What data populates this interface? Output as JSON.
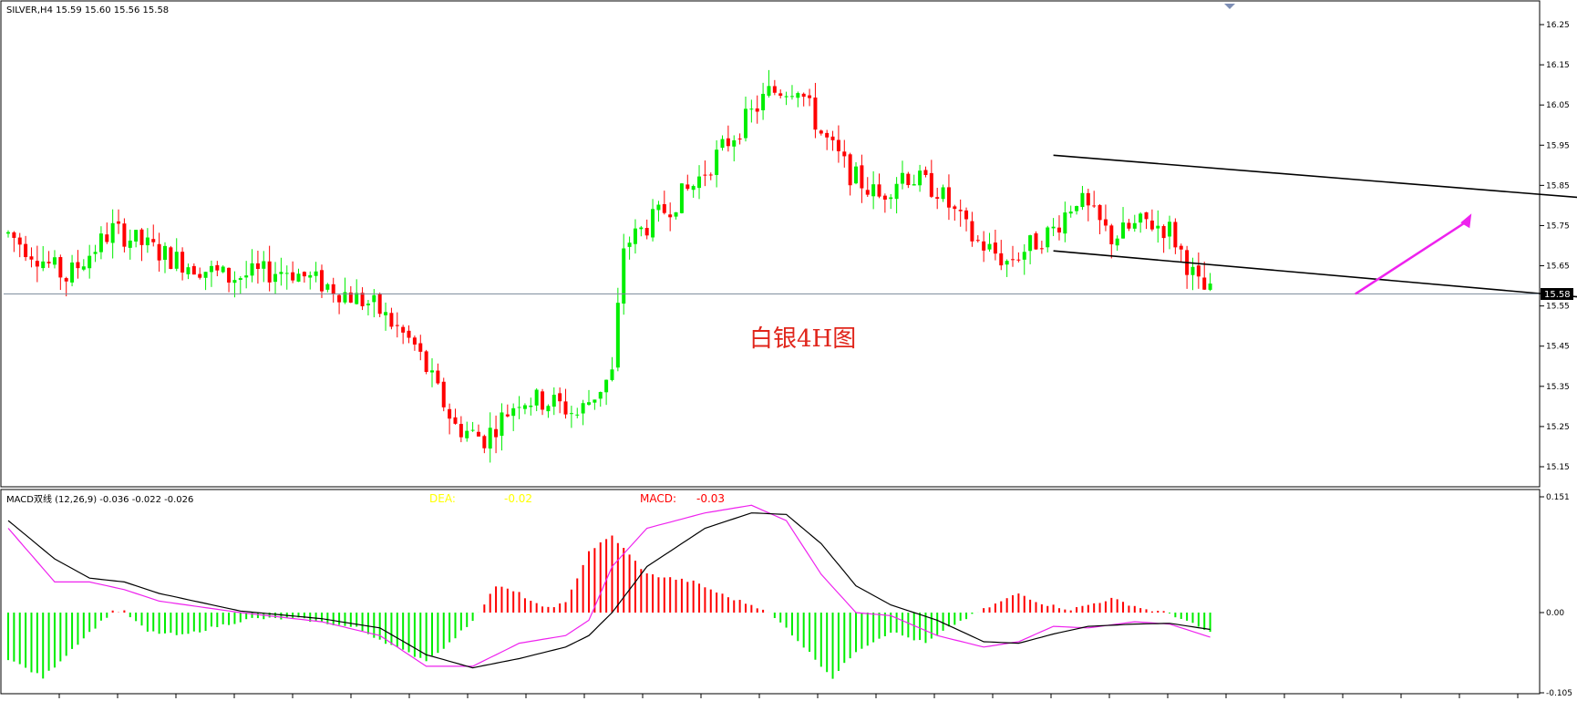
{
  "chart_data": [
    {
      "type": "candlestick",
      "symbol_header": "SILVER,H4  15.59 15.60 15.56 15.58",
      "annotation": "白银4H图",
      "last_price_label": "15.58",
      "last_price": 15.58,
      "ylim": [
        15.1,
        16.3
      ],
      "y_ticks": [
        "16.25",
        "16.15",
        "16.05",
        "15.95",
        "15.85",
        "15.75",
        "15.65",
        "15.55",
        "15.45",
        "15.35",
        "15.25",
        "15.15"
      ],
      "y_tick_values": [
        16.25,
        16.15,
        16.05,
        15.95,
        15.85,
        15.75,
        15.65,
        15.55,
        15.45,
        15.35,
        15.25,
        15.15
      ],
      "colors": {
        "up": "#00ee00",
        "down": "#ff0000",
        "channel": "#000000",
        "arrow": "#ee22ee",
        "last_line": "#7a8a9a"
      },
      "channel": {
        "upper": [
          [
            180,
            15.925
          ],
          [
            310,
            15.774
          ]
        ],
        "lower": [
          [
            180,
            15.687
          ],
          [
            308,
            15.525
          ]
        ]
      },
      "arrow": {
        "from": [
          232,
          15.58
        ],
        "to": [
          252,
          15.78
        ]
      },
      "grid": false
    },
    {
      "type": "macd",
      "header": "MACD双线 (12,26,9) -0.036 -0.022 -0.026",
      "dea_label": "DEA:",
      "dea_value": "-0.02",
      "macd_label": "MACD:",
      "macd_value": "-0.03",
      "ylim": [
        -0.105,
        0.151
      ],
      "y_ticks": [
        "0.151",
        "0.00",
        "-0.105"
      ],
      "y_tick_values": [
        0.151,
        0.0,
        -0.105
      ],
      "colors": {
        "pos": "#ff0000",
        "neg": "#00ee00",
        "dif": "#ee22ee",
        "dea": "#000000",
        "dea_label": "#ffff00",
        "macd_label": "#ff0000"
      }
    }
  ]
}
